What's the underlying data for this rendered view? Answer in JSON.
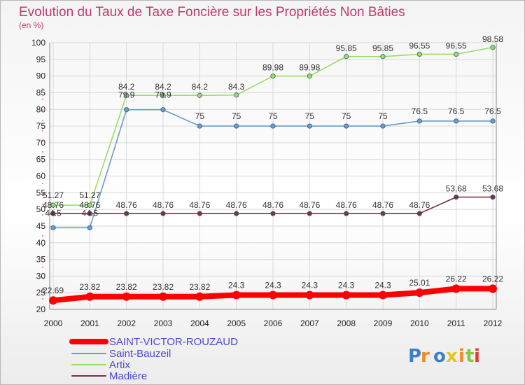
{
  "chart_data": {
    "type": "line",
    "title": "Evolution du Taux de Taxe Foncière sur les Propriétés Non Bâties",
    "subtitle": "(en %)",
    "x": [
      "2000",
      "2001",
      "2002",
      "2003",
      "2004",
      "2005",
      "2006",
      "2007",
      "2008",
      "2009",
      "2010",
      "2011",
      "2012"
    ],
    "ylim": [
      20,
      100
    ],
    "yticks": [
      20,
      25,
      30,
      35,
      40,
      45,
      50,
      55,
      60,
      65,
      70,
      75,
      80,
      85,
      90,
      95,
      100
    ],
    "grid": true,
    "legend_position": "bottom-left",
    "series": [
      {
        "name": "SAINT-VICTOR-ROUZAUD",
        "color": "#ff0000",
        "values": [
          22.69,
          23.82,
          23.82,
          23.82,
          23.82,
          24.3,
          24.3,
          24.3,
          24.3,
          24.3,
          25.01,
          26.22,
          26.22
        ],
        "labels": [
          "22.69",
          "23.82",
          "23.82",
          "23.82",
          "23.82",
          "24.3",
          "24.3",
          "24.3",
          "24.3",
          "24.3",
          "25.01",
          "26.22",
          "26.22"
        ]
      },
      {
        "name": "Saint-Bauzeil",
        "color": "#6a9ccc",
        "values": [
          44.5,
          44.5,
          79.9,
          79.9,
          75,
          75,
          75,
          75,
          75,
          75,
          76.5,
          76.5,
          76.5
        ],
        "labels": [
          "44.5",
          "44.5",
          "79.9",
          "79.9",
          "75",
          "75",
          "75",
          "75",
          "75",
          "75",
          "76.5",
          "76.5",
          "76.5"
        ]
      },
      {
        "name": "Artix",
        "color": "#99dd66",
        "values": [
          51.27,
          51.27,
          84.2,
          84.2,
          84.2,
          84.3,
          89.98,
          89.98,
          95.85,
          95.85,
          96.55,
          96.55,
          98.58
        ],
        "labels": [
          "51.27",
          "51.27",
          "84.2",
          "84.2",
          "84.2",
          "84.3",
          "89.98",
          "89.98",
          "95.85",
          "95.85",
          "96.55",
          "96.55",
          "98.58"
        ]
      },
      {
        "name": "Madière",
        "color": "#7a3344",
        "values": [
          48.76,
          48.76,
          48.76,
          48.76,
          48.76,
          48.76,
          48.76,
          48.76,
          48.76,
          48.76,
          48.76,
          53.68,
          53.68
        ],
        "labels": [
          "48.76",
          "48.76",
          "48.76",
          "48.76",
          "48.76",
          "48.76",
          "48.76",
          "48.76",
          "48.76",
          "48.76",
          "48.76",
          "53.68",
          "53.68"
        ]
      }
    ]
  },
  "brand": {
    "text": "Proxiti"
  }
}
